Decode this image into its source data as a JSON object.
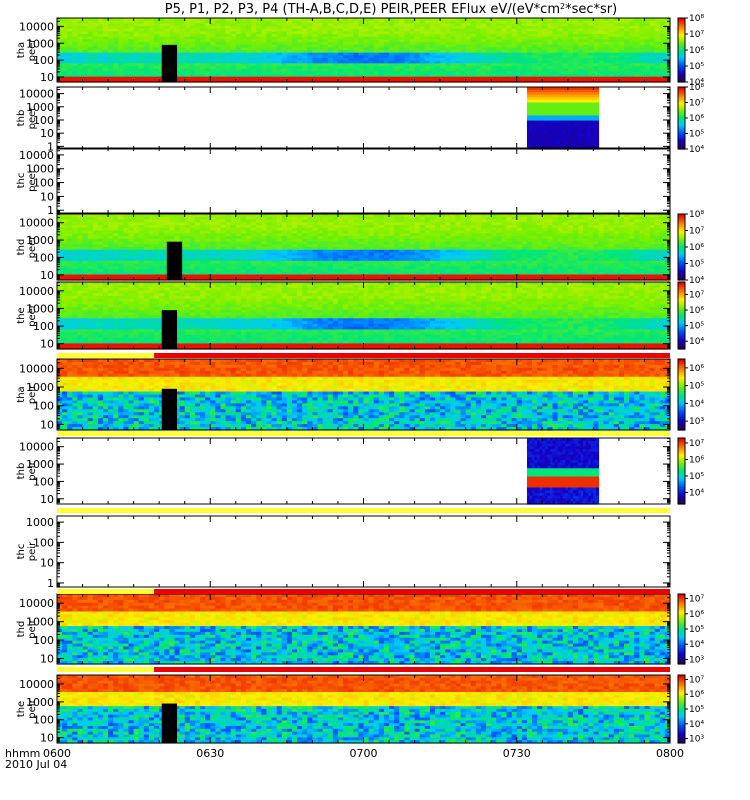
{
  "chart_data": {
    "type": "heatmap",
    "title_prefix": "P5, P1, P2, P3, P4 (TH-A,B,C,D,E) PEIR,PEER EFlux eV/(eV*cm",
    "title_sup": "2",
    "title_suffix": "*sec*sr)",
    "x_tick_labels": [
      "0600",
      "0630",
      "0700",
      "0730",
      "0800"
    ],
    "x_range_minutes": [
      0,
      120
    ],
    "x_ticks_minutes": [
      0,
      30,
      60,
      90,
      120
    ],
    "x_minor_step_minutes": 5,
    "footer_label": "hhmm",
    "date_label": "2010 Jul 04",
    "colorscale": "rainbow (purple-blue-cyan-green-yellow-orange-red)",
    "panels": [
      {
        "probe": "tha",
        "species": "peer",
        "yticks": [
          "10",
          "100",
          "1000",
          "10000"
        ],
        "ylog": [
          0.7,
          4.5
        ],
        "data_window_minutes": [
          0,
          120
        ],
        "gap_minutes": [
          20.5,
          23.5
        ],
        "colorbar": {
          "labels": [
            "10⁸",
            "10⁷",
            "10⁶",
            "10⁵",
            "10⁴"
          ],
          "exp_range": [
            4,
            8
          ]
        }
      },
      {
        "probe": "thb",
        "species": "peer",
        "yticks": [
          "1",
          "10",
          "100",
          "1000",
          "10000"
        ],
        "ylog": [
          -0.2,
          4.5
        ],
        "data_window_minutes": [
          92,
          106
        ],
        "colorbar": {
          "labels": [
            "10⁸",
            "10⁷",
            "10⁶",
            "10⁵",
            "10⁴"
          ],
          "exp_range": [
            4,
            8
          ]
        }
      },
      {
        "probe": "thc",
        "species": "peer",
        "yticks": [
          "1",
          "10",
          "100",
          "1000",
          "10000"
        ],
        "ylog": [
          -0.2,
          4.5
        ],
        "data_window_minutes": null,
        "colorbar": null
      },
      {
        "probe": "thd",
        "species": "peer",
        "yticks": [
          "10",
          "100",
          "1000",
          "10000"
        ],
        "ylog": [
          0.7,
          4.5
        ],
        "data_window_minutes": [
          0,
          120
        ],
        "gap_minutes": [
          21.5,
          24.5
        ],
        "colorbar": {
          "labels": [
            "10⁸",
            "10⁷",
            "10⁶",
            "10⁵",
            "10⁴"
          ],
          "exp_range": [
            4,
            8
          ]
        }
      },
      {
        "probe": "the",
        "species": "peer",
        "yticks": [
          "10",
          "100",
          "1000",
          "10000"
        ],
        "ylog": [
          0.7,
          4.5
        ],
        "data_window_minutes": [
          0,
          120
        ],
        "gap_minutes": [
          20.5,
          23.5
        ],
        "colorbar": {
          "labels": [
            "10⁷",
            "10⁶",
            "10⁵",
            "10⁴"
          ],
          "exp_range": [
            3.5,
            7.8
          ]
        }
      },
      {
        "probe": "tha",
        "species": "peir",
        "yticks": [
          "10",
          "100",
          "1000",
          "10000"
        ],
        "ylog": [
          0.7,
          4.5
        ],
        "data_window_minutes": [
          0,
          120
        ],
        "gap_minutes": [
          20.5,
          23.5
        ],
        "colorbar": {
          "labels": [
            "10⁶",
            "10⁵",
            "10⁴",
            "10³"
          ],
          "exp_range": [
            2.5,
            6.5
          ]
        }
      },
      {
        "probe": "thb",
        "species": "peir",
        "yticks": [
          "10",
          "100",
          "1000",
          "10000"
        ],
        "ylog": [
          0.7,
          4.5
        ],
        "data_window_minutes": [
          92,
          106
        ],
        "colorbar": {
          "labels": [
            "10⁷",
            "10⁶",
            "10⁵",
            "10⁴"
          ],
          "exp_range": [
            3.3,
            7.3
          ]
        }
      },
      {
        "probe": "thc",
        "species": "peir",
        "yticks": [
          "1",
          "10",
          "100",
          "1000"
        ],
        "ylog": [
          -0.2,
          3.3
        ],
        "data_window_minutes": null,
        "colorbar": null
      },
      {
        "probe": "thd",
        "species": "peir",
        "yticks": [
          "10",
          "100",
          "1000",
          "10000"
        ],
        "ylog": [
          0.7,
          4.5
        ],
        "data_window_minutes": [
          0,
          120
        ],
        "colorbar": {
          "labels": [
            "10⁷",
            "10⁶",
            "10⁵",
            "10⁴",
            "10³"
          ],
          "exp_range": [
            2.7,
            7.3
          ]
        }
      },
      {
        "probe": "the",
        "species": "peir",
        "yticks": [
          "10",
          "100",
          "1000",
          "10000"
        ],
        "ylog": [
          0.7,
          4.5
        ],
        "data_window_minutes": [
          0,
          120
        ],
        "gap_minutes": [
          20.5,
          23.5
        ],
        "colorbar": {
          "labels": [
            "10⁷",
            "10⁶",
            "10⁵",
            "10⁴",
            "10³"
          ],
          "exp_range": [
            2.7,
            7.3
          ]
        }
      }
    ],
    "status_bars": [
      {
        "after_panel": 4,
        "segments": [
          {
            "from": 0,
            "to": 19,
            "color": "#ffff33"
          },
          {
            "from": 19,
            "to": 120,
            "color": "#ee0000"
          }
        ]
      },
      {
        "after_panel": 5,
        "segments": [
          {
            "from": 0,
            "to": 120,
            "color": "#ffff33"
          }
        ]
      },
      {
        "after_panel": 6,
        "segments": [
          {
            "from": 0,
            "to": 120,
            "color": "#ffff33"
          }
        ]
      },
      {
        "after_panel": 7,
        "segments": [
          {
            "from": 0,
            "to": 19,
            "color": "#ffff33"
          },
          {
            "from": 19,
            "to": 120,
            "color": "#ee0000"
          }
        ]
      },
      {
        "after_panel": 8,
        "segments": [
          {
            "from": 0,
            "to": 19,
            "color": "#ffff33"
          },
          {
            "from": 19,
            "to": 120,
            "color": "#ee0000"
          }
        ]
      }
    ]
  }
}
